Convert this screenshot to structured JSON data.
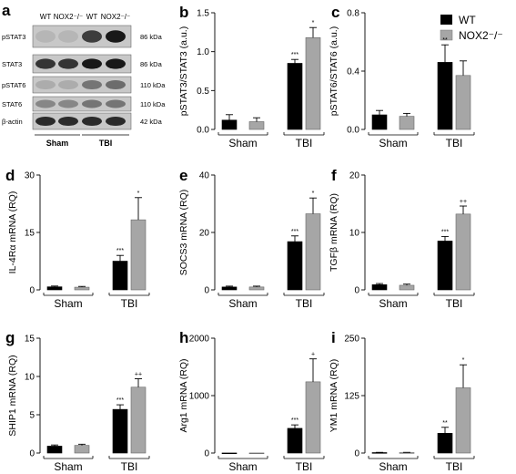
{
  "colors": {
    "wt": "#000000",
    "nox2": "#a6a6a6",
    "blot_bg": "#c8c8c8",
    "band_dark": "#1c1c1c"
  },
  "legend": {
    "items": [
      {
        "label": "WT",
        "color": "#000000"
      },
      {
        "label": "NOX2⁻/⁻",
        "color": "#a6a6a6"
      }
    ]
  },
  "blot": {
    "letter": "a",
    "lanes": [
      "WT",
      "NOX2⁻/⁻",
      "WT",
      "NOX2⁻/⁻"
    ],
    "rows": [
      {
        "label": "pSTAT3",
        "kda": "86 kDa",
        "bands": [
          0.1,
          0.1,
          0.75,
          0.95
        ]
      },
      {
        "label": "STAT3",
        "kda": "86 kDa",
        "bands": [
          0.8,
          0.8,
          0.95,
          0.95
        ]
      },
      {
        "label": "pSTAT6",
        "kda": "110 kDa",
        "bands": [
          0.15,
          0.15,
          0.45,
          0.5
        ]
      },
      {
        "label": "STAT6",
        "kda": "110 kDa",
        "bands": [
          0.35,
          0.35,
          0.45,
          0.45
        ]
      },
      {
        "label": "β-actin",
        "kda": "42 kDa",
        "bands": [
          0.85,
          0.85,
          0.85,
          0.85
        ]
      }
    ],
    "groups": [
      "Sham",
      "TBI"
    ]
  },
  "chart_data": [
    {
      "id": "b",
      "type": "bar",
      "ylabel": "pSTAT3/STAT3 (a.u.)",
      "ylim": [
        0,
        1.5
      ],
      "yticks": [
        {
          "v": 0,
          "t": "0.0"
        },
        {
          "v": 0.5,
          "t": "0.5"
        },
        {
          "v": 1.0,
          "t": "1.0"
        },
        {
          "v": 1.5,
          "t": "1.5"
        }
      ],
      "groups": [
        "Sham",
        "TBI"
      ],
      "series": [
        {
          "name": "WT",
          "values": [
            0.12,
            0.85
          ],
          "errors": [
            0.07,
            0.05
          ],
          "sig": [
            "",
            "***"
          ]
        },
        {
          "name": "NOX2⁻/⁻",
          "values": [
            0.1,
            1.18
          ],
          "errors": [
            0.05,
            0.13
          ],
          "sig": [
            "",
            "*"
          ]
        }
      ]
    },
    {
      "id": "c",
      "type": "bar",
      "ylabel": "pSTAT6/STAT6 (a.u.)",
      "ylim": [
        0,
        0.8
      ],
      "yticks": [
        {
          "v": 0,
          "t": "0.0"
        },
        {
          "v": 0.4,
          "t": "0.4"
        },
        {
          "v": 0.8,
          "t": "0.8"
        }
      ],
      "groups": [
        "Sham",
        "TBI"
      ],
      "series": [
        {
          "name": "WT",
          "values": [
            0.1,
            0.46
          ],
          "errors": [
            0.03,
            0.12
          ],
          "sig": [
            "",
            "**"
          ]
        },
        {
          "name": "NOX2⁻/⁻",
          "values": [
            0.09,
            0.37
          ],
          "errors": [
            0.02,
            0.1
          ],
          "sig": [
            "",
            ""
          ]
        }
      ]
    },
    {
      "id": "d",
      "type": "bar",
      "ylabel": "IL-4Rα mRNA (RQ)",
      "ylim": [
        0,
        30
      ],
      "yticks": [
        {
          "v": 0,
          "t": "0"
        },
        {
          "v": 15,
          "t": "15"
        },
        {
          "v": 30,
          "t": "30"
        }
      ],
      "groups": [
        "Sham",
        "TBI"
      ],
      "series": [
        {
          "name": "WT",
          "values": [
            0.8,
            7.5
          ],
          "errors": [
            0.2,
            1.5
          ],
          "sig": [
            "",
            "***"
          ]
        },
        {
          "name": "NOX2⁻/⁻",
          "values": [
            0.7,
            18.3
          ],
          "errors": [
            0.2,
            5.8
          ],
          "sig": [
            "",
            "*"
          ]
        }
      ]
    },
    {
      "id": "e",
      "type": "bar",
      "ylabel": "SOCS3 mRNA (RQ)",
      "ylim": [
        0,
        40
      ],
      "yticks": [
        {
          "v": 0,
          "t": "0"
        },
        {
          "v": 20,
          "t": "20"
        },
        {
          "v": 40,
          "t": "40"
        }
      ],
      "groups": [
        "Sham",
        "TBI"
      ],
      "series": [
        {
          "name": "WT",
          "values": [
            1.0,
            16.8
          ],
          "errors": [
            0.3,
            2.0
          ],
          "sig": [
            "",
            "***"
          ]
        },
        {
          "name": "NOX2⁻/⁻",
          "values": [
            1.0,
            26.5
          ],
          "errors": [
            0.3,
            5.5
          ],
          "sig": [
            "",
            "*"
          ]
        }
      ]
    },
    {
      "id": "f",
      "type": "bar",
      "ylabel": "TGFβ mRNA (RQ)",
      "ylim": [
        0,
        20
      ],
      "yticks": [
        {
          "v": 0,
          "t": "0"
        },
        {
          "v": 10,
          "t": "10"
        },
        {
          "v": 20,
          "t": "20"
        }
      ],
      "groups": [
        "Sham",
        "TBI"
      ],
      "series": [
        {
          "name": "WT",
          "values": [
            0.9,
            8.5
          ],
          "errors": [
            0.2,
            0.8
          ],
          "sig": [
            "",
            "***"
          ]
        },
        {
          "name": "NOX2⁻/⁻",
          "values": [
            0.8,
            13.2
          ],
          "errors": [
            0.2,
            1.4
          ],
          "sig": [
            "",
            "++"
          ]
        }
      ]
    },
    {
      "id": "g",
      "type": "bar",
      "ylabel": "SHIP1 mRNA (RQ)",
      "ylim": [
        0,
        15
      ],
      "yticks": [
        {
          "v": 0,
          "t": "0"
        },
        {
          "v": 5,
          "t": "5"
        },
        {
          "v": 10,
          "t": "10"
        },
        {
          "v": 15,
          "t": "15"
        }
      ],
      "groups": [
        "Sham",
        "TBI"
      ],
      "series": [
        {
          "name": "WT",
          "values": [
            0.9,
            5.7
          ],
          "errors": [
            0.15,
            0.6
          ],
          "sig": [
            "",
            "***"
          ]
        },
        {
          "name": "NOX2⁻/⁻",
          "values": [
            1.0,
            8.6
          ],
          "errors": [
            0.15,
            1.1
          ],
          "sig": [
            "",
            "++"
          ]
        }
      ]
    },
    {
      "id": "h",
      "type": "bar",
      "ylabel": "Arg1 mRNA (RQ)",
      "ylim": [
        0,
        2000
      ],
      "yticks": [
        {
          "v": 0,
          "t": "0"
        },
        {
          "v": 1000,
          "t": "1000"
        },
        {
          "v": 2000,
          "t": "2000"
        }
      ],
      "groups": [
        "Sham",
        "TBI"
      ],
      "series": [
        {
          "name": "WT",
          "values": [
            1,
            430
          ],
          "errors": [
            0,
            60
          ],
          "sig": [
            "",
            "***"
          ]
        },
        {
          "name": "NOX2⁻/⁻",
          "values": [
            1,
            1240
          ],
          "errors": [
            0,
            400
          ],
          "sig": [
            "",
            "+"
          ]
        }
      ]
    },
    {
      "id": "i",
      "type": "bar",
      "ylabel": "YM1 mRNA (RQ)",
      "ylim": [
        0,
        250
      ],
      "yticks": [
        {
          "v": 0,
          "t": "0"
        },
        {
          "v": 125,
          "t": "125"
        },
        {
          "v": 250,
          "t": "250"
        }
      ],
      "groups": [
        "Sham",
        "TBI"
      ],
      "series": [
        {
          "name": "WT",
          "values": [
            1,
            43
          ],
          "errors": [
            0.5,
            13
          ],
          "sig": [
            "",
            "**"
          ]
        },
        {
          "name": "NOX2⁻/⁻",
          "values": [
            1,
            142
          ],
          "errors": [
            0.5,
            50
          ],
          "sig": [
            "",
            "*"
          ]
        }
      ]
    }
  ]
}
